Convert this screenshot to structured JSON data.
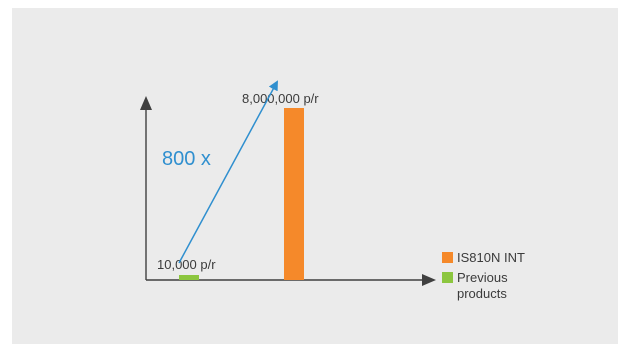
{
  "chart_data": {
    "type": "bar",
    "title": "",
    "xlabel": "",
    "ylabel": "",
    "ylim": [
      0,
      8000000
    ],
    "grid": false,
    "legend_position": "bottom-right",
    "series": [
      {
        "name": "IS810N INT",
        "value": 8000000,
        "label": "8,000,000 p/r",
        "color": "#f5892a"
      },
      {
        "name": "Previous products",
        "value": 10000,
        "label": "10,000 p/r",
        "color": "#8cc63f"
      }
    ],
    "annotation": {
      "text": "800 x",
      "color": "#2f8fcf",
      "from": "Previous products",
      "to": "IS810N INT"
    }
  },
  "legend": {
    "items": [
      {
        "label_lines": [
          "IS810N INT"
        ],
        "color": "#f5892a"
      },
      {
        "label_lines": [
          "Previous",
          "products"
        ],
        "color": "#8cc63f"
      }
    ]
  }
}
